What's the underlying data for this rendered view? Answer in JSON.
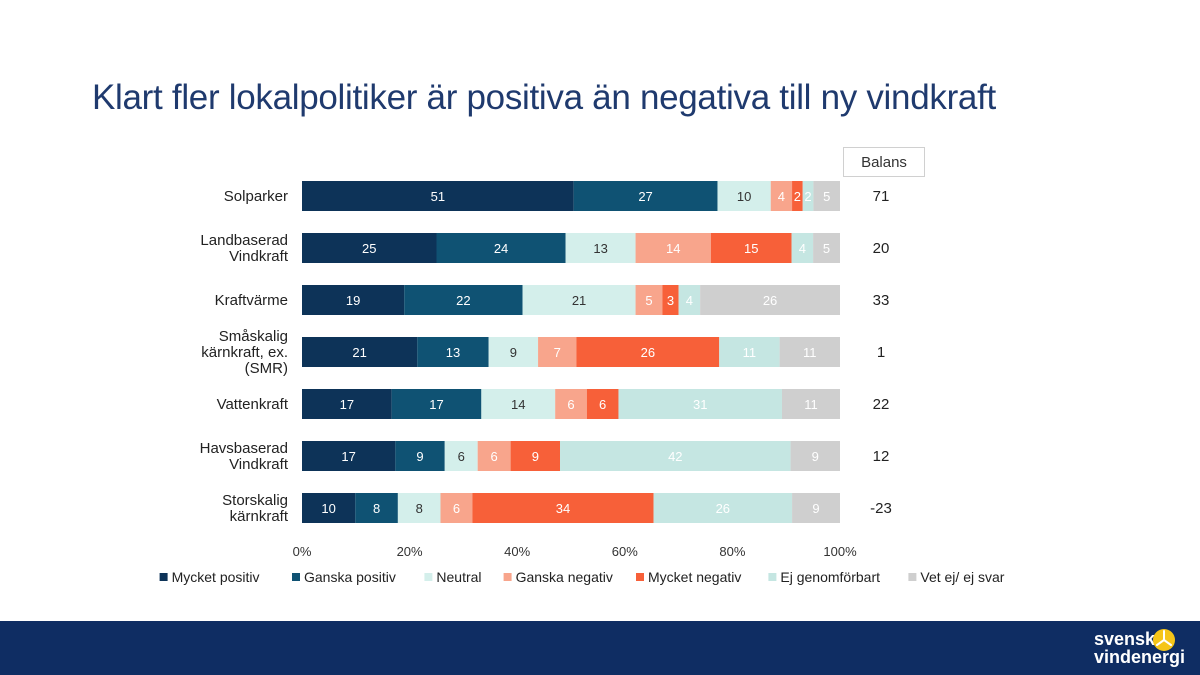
{
  "title": "Klart fler lokalpolitiker är positiva än negativa till ny vindkraft",
  "balans_header": "Balans",
  "logo": {
    "line1": "svensk",
    "line2": "vindenergi"
  },
  "chart_data": {
    "type": "bar",
    "orientation": "horizontal",
    "stacked": "percent",
    "categories": [
      [
        "Solparker"
      ],
      [
        "Landbaserad",
        "Vindkraft"
      ],
      [
        "Kraftvärme"
      ],
      [
        "Småskalig",
        "kärnkraft, ex.",
        "(SMR)"
      ],
      [
        "Vattenkraft"
      ],
      [
        "Havsbaserad",
        "Vindkraft"
      ],
      [
        "Storskalig",
        "kärnkraft"
      ]
    ],
    "series": [
      {
        "name": "Mycket positiv",
        "color": "#0d3358",
        "label_color": "#ffffff",
        "values": [
          51,
          25,
          19,
          21,
          17,
          17,
          10
        ]
      },
      {
        "name": "Ganska positiv",
        "color": "#0f5273",
        "label_color": "#ffffff",
        "values": [
          27,
          24,
          22,
          13,
          17,
          9,
          8
        ]
      },
      {
        "name": "Neutral",
        "color": "#d4efeb",
        "label_color": "#333333",
        "values": [
          10,
          13,
          21,
          9,
          14,
          6,
          8
        ]
      },
      {
        "name": "Ganska negativ",
        "color": "#f8a58c",
        "label_color": "#ffffff",
        "values": [
          4,
          14,
          5,
          7,
          6,
          6,
          6
        ]
      },
      {
        "name": "Mycket negativ",
        "color": "#f76039",
        "label_color": "#ffffff",
        "values": [
          2,
          15,
          3,
          26,
          6,
          9,
          34
        ]
      },
      {
        "name": "Ej genomförbart",
        "color": "#c5e6e2",
        "label_color": "#ffffff",
        "values": [
          2,
          4,
          4,
          11,
          31,
          42,
          26
        ]
      },
      {
        "name": "Vet ej/ ej svar",
        "color": "#cfcfcf",
        "label_color": "#ffffff",
        "values": [
          5,
          5,
          26,
          11,
          11,
          9,
          9
        ]
      }
    ],
    "balans": [
      "71",
      "20",
      "33",
      "1",
      "22",
      "12",
      "-23"
    ],
    "x_ticks": [
      "0%",
      "20%",
      "40%",
      "60%",
      "80%",
      "100%"
    ],
    "xlim": [
      0,
      100
    ],
    "legend_position": "bottom"
  }
}
